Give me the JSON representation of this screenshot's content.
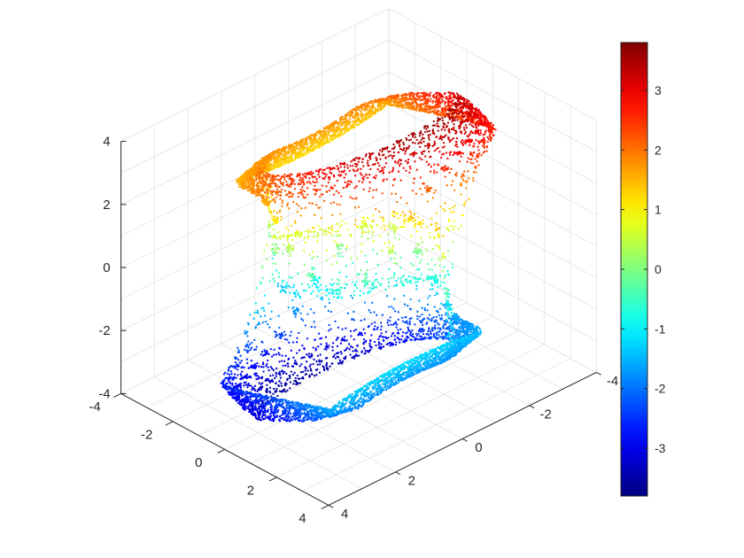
{
  "chart_data": {
    "type": "scatter",
    "projection": "3d",
    "title": "",
    "xlabel": "",
    "ylabel": "",
    "zlabel": "",
    "grid": true,
    "colormap": "jet",
    "color_by": "z",
    "xlim": [
      -4,
      4
    ],
    "ylim": [
      -4,
      4
    ],
    "zlim": [
      -4,
      4
    ],
    "ticks": {
      "x": [
        "-4",
        "-2",
        "0",
        "2",
        "4"
      ],
      "y": [
        "-4",
        "-2",
        "0",
        "2",
        "4"
      ],
      "z": [
        "-4",
        "-2",
        "0",
        "2",
        "4"
      ]
    },
    "colorbar": {
      "placement": "right",
      "range": [
        -3.8,
        3.8
      ],
      "ticks": [
        "-3",
        "-2",
        "-1",
        "0",
        "1",
        "2",
        "3"
      ]
    },
    "colors": {
      "background": "#ffffff",
      "grid": "#e6e6e6",
      "axis": "#262626",
      "tick_text": "#262626"
    },
    "series": [
      {
        "shape": "two-scroll chaotic attractor",
        "points_shown": 9000,
        "point_range": {
          "x": [
            -3.4,
            3.4
          ],
          "y": [
            -3.4,
            3.4
          ],
          "z": [
            -3.8,
            3.8
          ]
        },
        "upper_scroll": {
          "center_xy": [
            -1.5,
            -1.5
          ],
          "z": 3.8
        },
        "lower_scroll": {
          "center_xy": [
            1.5,
            1.5
          ],
          "z": -3.8
        }
      }
    ]
  }
}
